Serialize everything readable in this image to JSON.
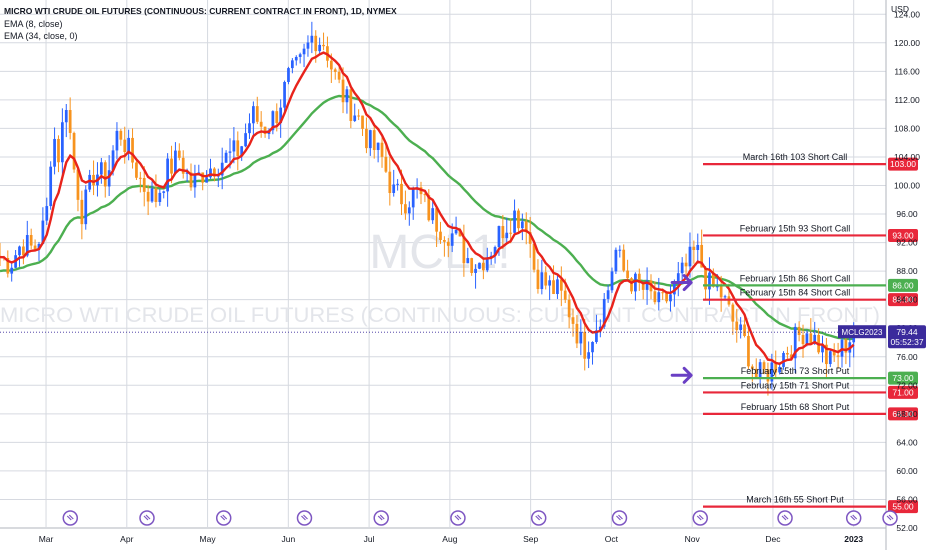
{
  "header": {
    "title": "MICRO WTI CRUDE OIL FUTURES (CONTINUOUS: CURRENT CONTRACT IN FRONT), 1D, NYMEX",
    "indicators": [
      "EMA (8, close)",
      "EMA (34, close, 0)"
    ]
  },
  "watermark": {
    "symbol": "MCL1!",
    "name": "MICRO WTI CRUDE OIL FUTURES (CONTINUOUS: CURRENT CONTRACT IN FRONT)"
  },
  "colors": {
    "bull": "#2962ff",
    "bear": "#f7931e",
    "ema_fast": "#e8231b",
    "ema_slow": "#4caf50",
    "call_line": "#e8273a",
    "put_line_green": "#4caf50",
    "arrow": "#6a3fc4",
    "current_price": "#3b2b9c"
  },
  "current_price": {
    "symbol": "MCLG2023",
    "price": "79.44",
    "countdown": "05:52:37"
  },
  "chart_data": {
    "type": "candlestick",
    "currency": "USD",
    "ylim": [
      52,
      126
    ],
    "y_ticks": [
      "52.00",
      "56.00",
      "60.00",
      "64.00",
      "68.00",
      "72.00",
      "76.00",
      "80.00",
      "84.00",
      "88.00",
      "92.00",
      "96.00",
      "100.00",
      "104.00",
      "108.00",
      "112.00",
      "116.00",
      "120.00",
      "124.00"
    ],
    "x_ticks": [
      {
        "label": "Mar",
        "x": 2.0
      },
      {
        "label": "Apr",
        "x": 3.0
      },
      {
        "label": "May",
        "x": 4.0
      },
      {
        "label": "Jun",
        "x": 5.0
      },
      {
        "label": "Jul",
        "x": 6.0
      },
      {
        "label": "Aug",
        "x": 7.0
      },
      {
        "label": "Sep",
        "x": 8.0
      },
      {
        "label": "Oct",
        "x": 9.0
      },
      {
        "label": "Nov",
        "x": 10.0
      },
      {
        "label": "Dec",
        "x": 11.0
      },
      {
        "label": "2023",
        "x": 12.0
      }
    ],
    "xlim": [
      1.43,
      12.4
    ],
    "price_path": [
      [
        1.43,
        90
      ],
      [
        1.55,
        89
      ],
      [
        1.7,
        92
      ],
      [
        1.85,
        91
      ],
      [
        2.0,
        95
      ],
      [
        2.08,
        108
      ],
      [
        2.15,
        104
      ],
      [
        2.25,
        112
      ],
      [
        2.35,
        102
      ],
      [
        2.45,
        96
      ],
      [
        2.6,
        102
      ],
      [
        2.75,
        101
      ],
      [
        2.9,
        108
      ],
      [
        3.05,
        104
      ],
      [
        3.2,
        100
      ],
      [
        3.35,
        98
      ],
      [
        3.5,
        102
      ],
      [
        3.65,
        104
      ],
      [
        3.8,
        100
      ],
      [
        3.95,
        102
      ],
      [
        4.1,
        103
      ],
      [
        4.25,
        104
      ],
      [
        4.4,
        105
      ],
      [
        4.55,
        110
      ],
      [
        4.7,
        108
      ],
      [
        4.85,
        110
      ],
      [
        5.0,
        115
      ],
      [
        5.15,
        117
      ],
      [
        5.3,
        121
      ],
      [
        5.45,
        120
      ],
      [
        5.55,
        116
      ],
      [
        5.7,
        112
      ],
      [
        5.85,
        110
      ],
      [
        6.0,
        106
      ],
      [
        6.15,
        104
      ],
      [
        6.3,
        99
      ],
      [
        6.45,
        98
      ],
      [
        6.6,
        99
      ],
      [
        6.75,
        96
      ],
      [
        6.9,
        94
      ],
      [
        7.05,
        93
      ],
      [
        7.2,
        90
      ],
      [
        7.35,
        89
      ],
      [
        7.5,
        91
      ],
      [
        7.65,
        94
      ],
      [
        7.8,
        96
      ],
      [
        7.95,
        95
      ],
      [
        8.05,
        88
      ],
      [
        8.2,
        86
      ],
      [
        8.35,
        85
      ],
      [
        8.5,
        82
      ],
      [
        8.65,
        77
      ],
      [
        8.8,
        80
      ],
      [
        8.95,
        85
      ],
      [
        9.05,
        91
      ],
      [
        9.15,
        88
      ],
      [
        9.3,
        86
      ],
      [
        9.45,
        85
      ],
      [
        9.6,
        83
      ],
      [
        9.75,
        85
      ],
      [
        9.9,
        88
      ],
      [
        10.05,
        91
      ],
      [
        10.2,
        86
      ],
      [
        10.35,
        85
      ],
      [
        10.5,
        81
      ],
      [
        10.65,
        78
      ],
      [
        10.8,
        73
      ],
      [
        10.95,
        74
      ],
      [
        11.1,
        76
      ],
      [
        11.25,
        78
      ],
      [
        11.4,
        80
      ],
      [
        11.55,
        78
      ],
      [
        11.7,
        75
      ],
      [
        11.85,
        77
      ],
      [
        12.0,
        79.44
      ]
    ],
    "series": [
      {
        "name": "EMA (8, close)",
        "values": []
      },
      {
        "name": "EMA (34, close, 0)",
        "values": []
      }
    ],
    "annotations": [
      {
        "text": "March 16th 103 Short Call",
        "price": 103.0,
        "label": "103.00",
        "color": "red"
      },
      {
        "text": "February 15th 93 Short Call",
        "price": 93.0,
        "label": "93.00",
        "color": "red"
      },
      {
        "text": "February 15th 86 Short Call",
        "price": 86.0,
        "label": "86.00",
        "color": "green"
      },
      {
        "text": "February 15th 84 Short Call",
        "price": 84.0,
        "label": "84.00",
        "color": "red"
      },
      {
        "text": "February 15th 73 Short Put",
        "price": 73.0,
        "label": "73.00",
        "color": "green"
      },
      {
        "text": "February 15th 71 Short Put",
        "price": 71.0,
        "label": "71.00",
        "color": "red"
      },
      {
        "text": "February 15th 68 Short Put",
        "price": 68.0,
        "label": "68.00",
        "color": "red"
      },
      {
        "text": "March 16th 55 Short Put",
        "price": 55.0,
        "label": "55.00",
        "color": "red"
      }
    ],
    "arrows": [
      {
        "x": 10.0,
        "price": 86.4
      },
      {
        "x": 10.0,
        "price": 73.4
      }
    ],
    "event_markers_x": [
      1.25,
      2.3,
      3.25,
      4.2,
      5.2,
      6.15,
      7.1,
      8.1,
      9.1,
      10.1,
      11.15,
      12.0,
      12.45
    ]
  }
}
